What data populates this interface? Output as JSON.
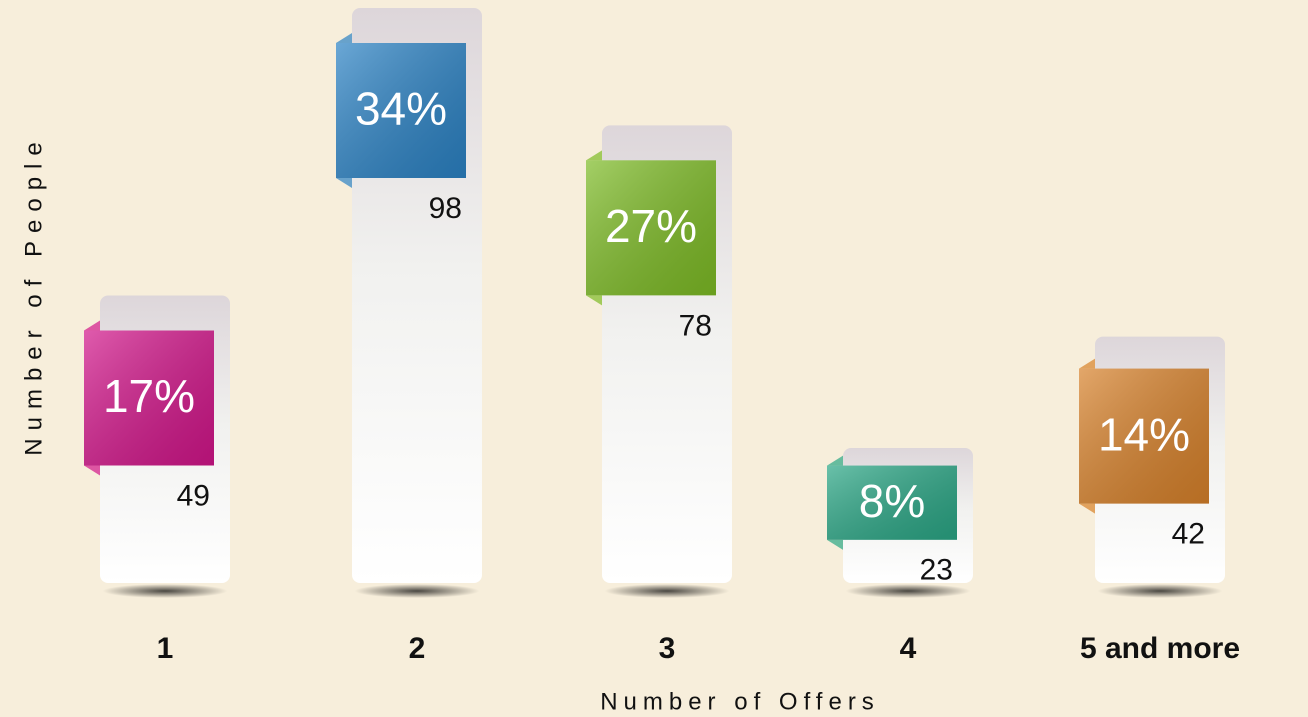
{
  "chart_data": {
    "type": "bar",
    "x_label": "Number of Offers",
    "y_label": "Number of People",
    "categories": [
      "1",
      "2",
      "3",
      "4",
      "5 and more"
    ],
    "values": [
      49,
      98,
      78,
      23,
      42
    ],
    "percents": [
      17,
      34,
      27,
      8,
      14
    ],
    "percent_labels": [
      "17%",
      "34%",
      "27%",
      "8%",
      "14%"
    ],
    "colors": [
      "#d2158a",
      "#2b82c4",
      "#7dbb25",
      "#2aa685",
      "#d7812a"
    ]
  }
}
